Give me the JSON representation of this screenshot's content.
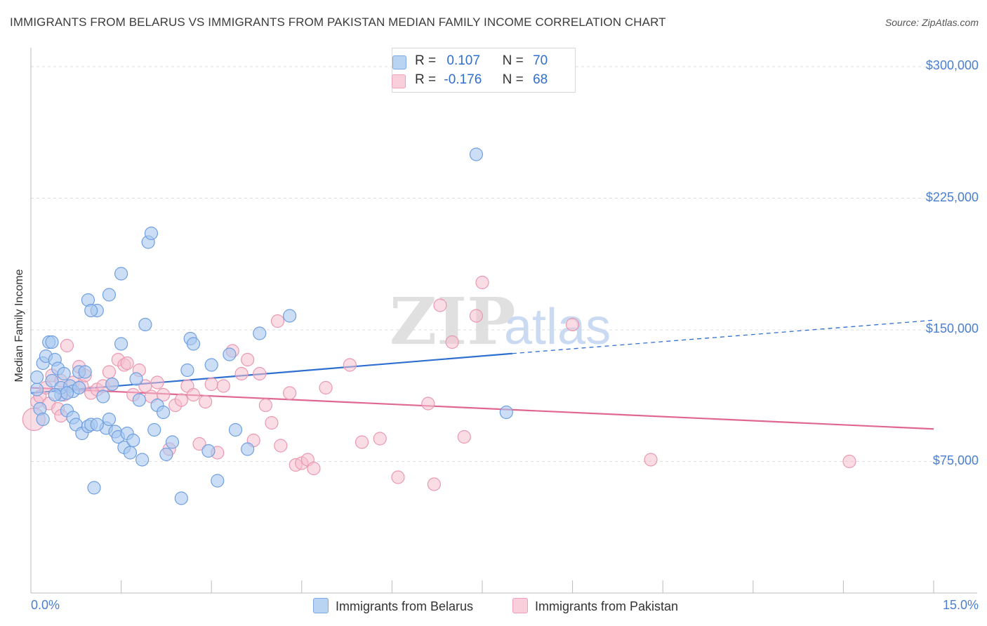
{
  "title": "IMMIGRANTS FROM BELARUS VS IMMIGRANTS FROM PAKISTAN MEDIAN FAMILY INCOME CORRELATION CHART",
  "source": "Source: ZipAtlas.com",
  "watermark": {
    "zip": "ZIP",
    "atlas": "atlas"
  },
  "legend": {
    "belarus": {
      "r_label": "R =",
      "r_value": "0.107",
      "n_label": "N =",
      "n_value": "70"
    },
    "pakistan": {
      "r_label": "R =",
      "r_value": "-0.176",
      "n_label": "N =",
      "n_value": "68"
    }
  },
  "bottom_legend": {
    "belarus": "Immigrants from Belarus",
    "pakistan": "Immigrants from Pakistan"
  },
  "colors": {
    "belarus_fill": "#a9c8f0",
    "belarus_stroke": "#6f9fe0",
    "belarus_line": "#2e6fd0",
    "pakistan_fill": "#f6c0d0",
    "pakistan_stroke": "#ea98b2",
    "pakistan_line": "#e06890",
    "tick_text": "#4a7fd0"
  },
  "chart_data": {
    "type": "scatter",
    "title": "IMMIGRANTS FROM BELARUS VS IMMIGRANTS FROM PAKISTAN MEDIAN FAMILY INCOME CORRELATION CHART",
    "xlabel": "",
    "ylabel": "Median Family Income",
    "xlim": [
      0,
      15
    ],
    "ylim": [
      0,
      310000
    ],
    "x_tick_labels": [
      "0.0%",
      "15.0%"
    ],
    "y_ticks": [
      75000,
      150000,
      225000,
      300000
    ],
    "y_tick_labels": [
      "$75,000",
      "$150,000",
      "$225,000",
      "$300,000"
    ],
    "grid": "horizontal dashed",
    "series": [
      {
        "name": "Immigrants from Belarus",
        "trend": {
          "x0": 0,
          "y0": 114000,
          "x1": 8.0,
          "y1": 136500,
          "dashed_to_x": 15,
          "dashed_to_y": 155500
        },
        "points": [
          [
            0.1,
            116000
          ],
          [
            0.15,
            105000
          ],
          [
            0.1,
            123000
          ],
          [
            0.2,
            131000
          ],
          [
            0.25,
            135000
          ],
          [
            0.3,
            143000
          ],
          [
            0.35,
            143000
          ],
          [
            0.35,
            121000
          ],
          [
            0.4,
            133000
          ],
          [
            0.45,
            128000
          ],
          [
            0.5,
            113000
          ],
          [
            0.5,
            117000
          ],
          [
            0.55,
            125000
          ],
          [
            0.6,
            104000
          ],
          [
            0.65,
            118000
          ],
          [
            0.7,
            115000
          ],
          [
            0.7,
            100000
          ],
          [
            0.75,
            96000
          ],
          [
            0.8,
            126000
          ],
          [
            0.8,
            117000
          ],
          [
            0.85,
            91000
          ],
          [
            0.9,
            126000
          ],
          [
            0.95,
            95000
          ],
          [
            1.0,
            96000
          ],
          [
            1.05,
            60000
          ],
          [
            1.1,
            161000
          ],
          [
            1.2,
            112000
          ],
          [
            1.25,
            94000
          ],
          [
            1.3,
            99000
          ],
          [
            1.35,
            119000
          ],
          [
            1.4,
            92000
          ],
          [
            1.45,
            89000
          ],
          [
            1.5,
            142000
          ],
          [
            1.55,
            83000
          ],
          [
            1.6,
            91000
          ],
          [
            1.65,
            80000
          ],
          [
            1.7,
            87000
          ],
          [
            1.75,
            122000
          ],
          [
            1.8,
            110000
          ],
          [
            1.85,
            76000
          ],
          [
            1.9,
            153000
          ],
          [
            1.95,
            200000
          ],
          [
            2.0,
            205000
          ],
          [
            2.05,
            93000
          ],
          [
            2.1,
            107000
          ],
          [
            2.25,
            79000
          ],
          [
            2.35,
            86000
          ],
          [
            2.6,
            127000
          ],
          [
            2.65,
            145000
          ],
          [
            2.7,
            142000
          ],
          [
            2.95,
            81000
          ],
          [
            3.0,
            130000
          ],
          [
            3.1,
            64000
          ],
          [
            3.3,
            136000
          ],
          [
            3.4,
            93000
          ],
          [
            3.6,
            82000
          ],
          [
            3.8,
            148000
          ],
          [
            4.3,
            158000
          ],
          [
            7.4,
            250000
          ],
          [
            7.9,
            103000
          ],
          [
            0.95,
            167000
          ],
          [
            1.0,
            161000
          ],
          [
            1.3,
            170000
          ],
          [
            1.5,
            182000
          ],
          [
            0.6,
            114000
          ],
          [
            2.5,
            54000
          ],
          [
            1.1,
            96000
          ],
          [
            0.2,
            99000
          ],
          [
            0.4,
            113000
          ],
          [
            2.2,
            103000
          ]
        ]
      },
      {
        "name": "Immigrants from Pakistan",
        "trend": {
          "x0": 0,
          "y0": 117000,
          "x1": 15,
          "y1": 93500
        },
        "points": [
          [
            0.05,
            99000
          ],
          [
            0.1,
            109000
          ],
          [
            0.15,
            112000
          ],
          [
            0.25,
            117000
          ],
          [
            0.3,
            108000
          ],
          [
            0.35,
            124000
          ],
          [
            0.45,
            105000
          ],
          [
            0.5,
            121000
          ],
          [
            0.55,
            113000
          ],
          [
            0.6,
            141000
          ],
          [
            0.7,
            120000
          ],
          [
            0.8,
            129000
          ],
          [
            0.85,
            118000
          ],
          [
            0.9,
            124000
          ],
          [
            1.0,
            114000
          ],
          [
            1.1,
            116000
          ],
          [
            1.2,
            118000
          ],
          [
            1.3,
            126000
          ],
          [
            1.35,
            119000
          ],
          [
            1.45,
            133000
          ],
          [
            1.55,
            130000
          ],
          [
            1.6,
            131000
          ],
          [
            1.7,
            113000
          ],
          [
            1.8,
            127000
          ],
          [
            1.9,
            118000
          ],
          [
            2.0,
            112000
          ],
          [
            2.1,
            120000
          ],
          [
            2.2,
            113000
          ],
          [
            2.3,
            82000
          ],
          [
            2.4,
            107000
          ],
          [
            2.5,
            110000
          ],
          [
            2.6,
            118000
          ],
          [
            2.7,
            113000
          ],
          [
            2.8,
            85000
          ],
          [
            2.9,
            109000
          ],
          [
            3.0,
            119000
          ],
          [
            3.1,
            80000
          ],
          [
            3.2,
            118000
          ],
          [
            3.35,
            138000
          ],
          [
            3.5,
            125000
          ],
          [
            3.6,
            133000
          ],
          [
            3.7,
            87000
          ],
          [
            3.8,
            125000
          ],
          [
            3.9,
            107000
          ],
          [
            4.0,
            97000
          ],
          [
            4.1,
            155000
          ],
          [
            4.15,
            84000
          ],
          [
            4.3,
            114000
          ],
          [
            4.4,
            73000
          ],
          [
            4.5,
            74000
          ],
          [
            4.6,
            76000
          ],
          [
            4.7,
            71000
          ],
          [
            4.9,
            117000
          ],
          [
            5.3,
            130000
          ],
          [
            5.5,
            86000
          ],
          [
            5.8,
            88000
          ],
          [
            6.1,
            66000
          ],
          [
            6.6,
            108000
          ],
          [
            6.7,
            62000
          ],
          [
            6.8,
            164000
          ],
          [
            7.0,
            143000
          ],
          [
            7.2,
            89000
          ],
          [
            7.4,
            158000
          ],
          [
            7.5,
            177000
          ],
          [
            9.0,
            153000
          ],
          [
            10.3,
            76000
          ],
          [
            13.6,
            75000
          ],
          [
            0.5,
            101000
          ]
        ]
      }
    ]
  }
}
